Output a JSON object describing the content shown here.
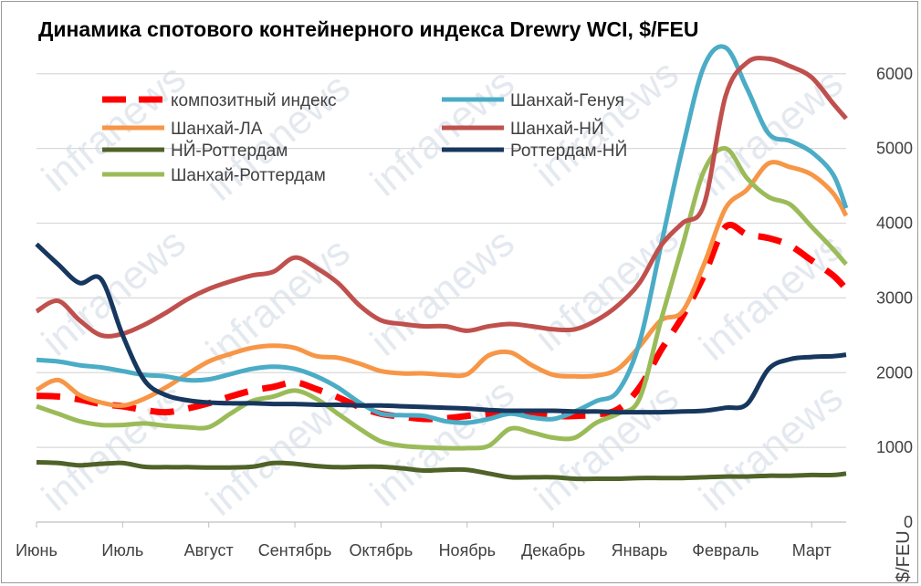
{
  "chart_data": {
    "type": "line",
    "title": "Динамика спотового контейнерного индекса Drewry WCI, $/FEU",
    "xlabel": "",
    "ylabel": "$/FEU",
    "ylim": [
      0,
      6400
    ],
    "yticks": [
      0,
      1000,
      2000,
      3000,
      4000,
      5000,
      6000
    ],
    "y_axis_side": "right",
    "grid": true,
    "legend_position": "top-left",
    "x_categories": [
      "Июнь",
      "Июль",
      "Август",
      "Сентябрь",
      "Октябрь",
      "Ноябрь",
      "Декабрь",
      "Январь",
      "Февраль",
      "Март"
    ],
    "x_category_positions": [
      0,
      1,
      2,
      3,
      4,
      5,
      6,
      7,
      8,
      9
    ],
    "x_range": [
      0,
      9.4
    ],
    "x": [
      0,
      0.25,
      0.5,
      0.75,
      1,
      1.25,
      1.5,
      1.75,
      2,
      2.25,
      2.5,
      2.75,
      3,
      3.25,
      3.5,
      3.75,
      4,
      4.25,
      4.5,
      4.75,
      5,
      5.25,
      5.5,
      5.75,
      6,
      6.25,
      6.5,
      6.75,
      7,
      7.25,
      7.5,
      7.75,
      8,
      8.25,
      8.5,
      8.75,
      9,
      9.25,
      9.4
    ],
    "series": [
      {
        "name": "композитный индекс",
        "color": "#ff0000",
        "style": "dashed",
        "values": [
          1690,
          1680,
          1640,
          1580,
          1550,
          1500,
          1470,
          1520,
          1590,
          1680,
          1760,
          1810,
          1870,
          1780,
          1670,
          1540,
          1450,
          1410,
          1380,
          1390,
          1420,
          1450,
          1470,
          1450,
          1420,
          1420,
          1440,
          1510,
          1800,
          2300,
          2750,
          3300,
          3950,
          3850,
          3800,
          3700,
          3500,
          3300,
          3120
        ]
      },
      {
        "name": "Шанхай-ЛА",
        "color": "#f79646",
        "style": "solid",
        "values": [
          1770,
          1900,
          1700,
          1600,
          1560,
          1650,
          1800,
          1980,
          2150,
          2250,
          2330,
          2360,
          2330,
          2220,
          2200,
          2120,
          2020,
          1990,
          1990,
          1970,
          1980,
          2230,
          2270,
          2100,
          1970,
          1950,
          1960,
          2050,
          2350,
          2700,
          2820,
          3450,
          4200,
          4450,
          4800,
          4750,
          4650,
          4400,
          4100
        ]
      },
      {
        "name": "НЙ-Роттердам",
        "color": "#4f6228",
        "style": "solid",
        "values": [
          800,
          790,
          760,
          780,
          790,
          740,
          735,
          735,
          730,
          730,
          740,
          790,
          780,
          750,
          735,
          740,
          740,
          720,
          690,
          700,
          700,
          650,
          600,
          600,
          600,
          580,
          580,
          580,
          590,
          590,
          590,
          600,
          610,
          610,
          620,
          620,
          630,
          630,
          650
        ]
      },
      {
        "name": "Шанхай-Роттердам",
        "color": "#9bbb59",
        "style": "solid",
        "values": [
          1550,
          1450,
          1350,
          1300,
          1300,
          1320,
          1290,
          1270,
          1270,
          1450,
          1620,
          1680,
          1760,
          1650,
          1450,
          1250,
          1080,
          1020,
          1000,
          990,
          990,
          1020,
          1250,
          1200,
          1130,
          1130,
          1330,
          1450,
          1650,
          2700,
          3700,
          4700,
          5000,
          4600,
          4350,
          4250,
          3950,
          3650,
          3450
        ]
      },
      {
        "name": "Шанхай-Генуя",
        "color": "#4bacc6",
        "style": "solid",
        "values": [
          2170,
          2150,
          2100,
          2070,
          2020,
          1970,
          1950,
          1900,
          1910,
          1980,
          2050,
          2080,
          2050,
          1950,
          1800,
          1600,
          1450,
          1430,
          1420,
          1350,
          1330,
          1380,
          1450,
          1400,
          1380,
          1480,
          1620,
          1750,
          2400,
          3700,
          5000,
          6100,
          6350,
          5800,
          5200,
          5100,
          4950,
          4650,
          4200
        ]
      },
      {
        "name": "Шанхай-НЙ",
        "color": "#c0504d",
        "style": "solid",
        "values": [
          2820,
          2960,
          2700,
          2500,
          2520,
          2640,
          2800,
          2980,
          3120,
          3220,
          3300,
          3350,
          3540,
          3400,
          3200,
          2900,
          2700,
          2650,
          2620,
          2620,
          2560,
          2620,
          2650,
          2620,
          2580,
          2580,
          2700,
          2900,
          3200,
          3700,
          4000,
          4250,
          5700,
          6150,
          6200,
          6100,
          5950,
          5600,
          5400
        ]
      },
      {
        "name": "Роттердам-НЙ",
        "color": "#17375e",
        "style": "solid",
        "values": [
          3720,
          3450,
          3200,
          3250,
          2500,
          1900,
          1700,
          1630,
          1600,
          1590,
          1590,
          1580,
          1580,
          1570,
          1570,
          1560,
          1560,
          1550,
          1540,
          1530,
          1520,
          1500,
          1490,
          1490,
          1490,
          1480,
          1480,
          1470,
          1470,
          1470,
          1480,
          1490,
          1530,
          1580,
          2050,
          2180,
          2210,
          2220,
          2240
        ]
      }
    ]
  },
  "watermark": "infranews"
}
